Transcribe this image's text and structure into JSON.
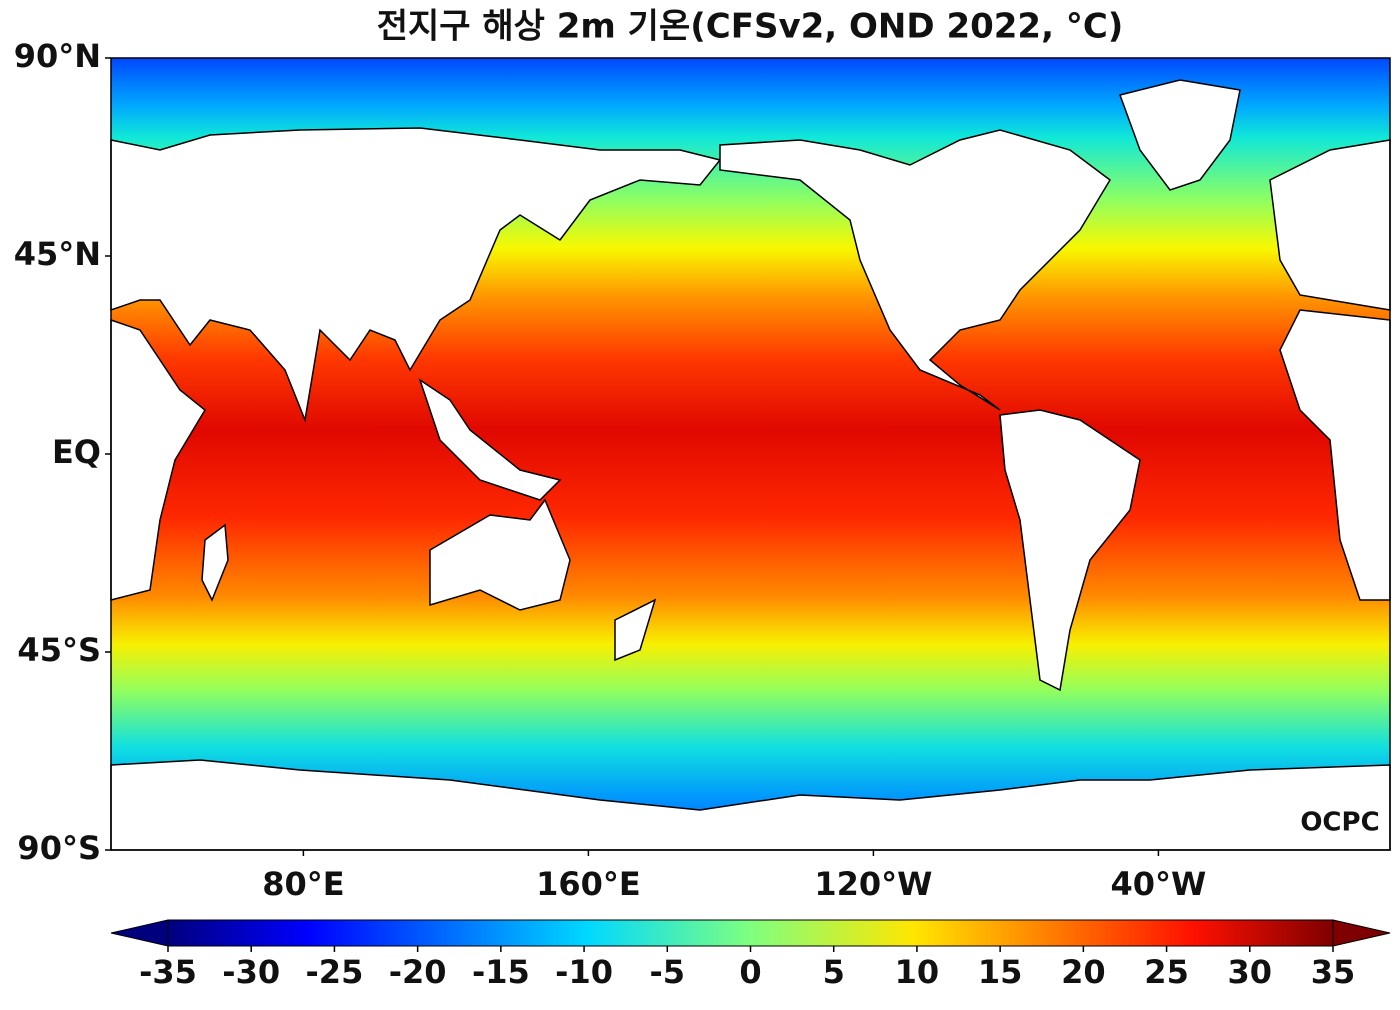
{
  "title": "전지구 해상 2m 기온(CFSv2, OND 2022, °C)",
  "map": {
    "lonlim": [
      26,
      385
    ],
    "latlim": [
      -90,
      90
    ],
    "lat_ticks": [
      {
        "value": 90,
        "label": "90°N"
      },
      {
        "value": 45,
        "label": "45°N"
      },
      {
        "value": 0,
        "label": "EQ"
      },
      {
        "value": -45,
        "label": "45°S"
      },
      {
        "value": -90,
        "label": "90°S"
      }
    ],
    "lon_ticks": [
      {
        "value": 80,
        "label": "80°E"
      },
      {
        "value": 160,
        "label": "160°E"
      },
      {
        "value": 240,
        "label": "120°W"
      },
      {
        "value": 320,
        "label": "40°W"
      }
    ]
  },
  "colorbar": {
    "lim": [
      -35,
      35
    ],
    "ticks": [
      -35,
      -30,
      -25,
      -20,
      -15,
      -10,
      -5,
      0,
      5,
      10,
      15,
      20,
      25,
      30,
      35
    ]
  },
  "logo": "OCPC"
}
